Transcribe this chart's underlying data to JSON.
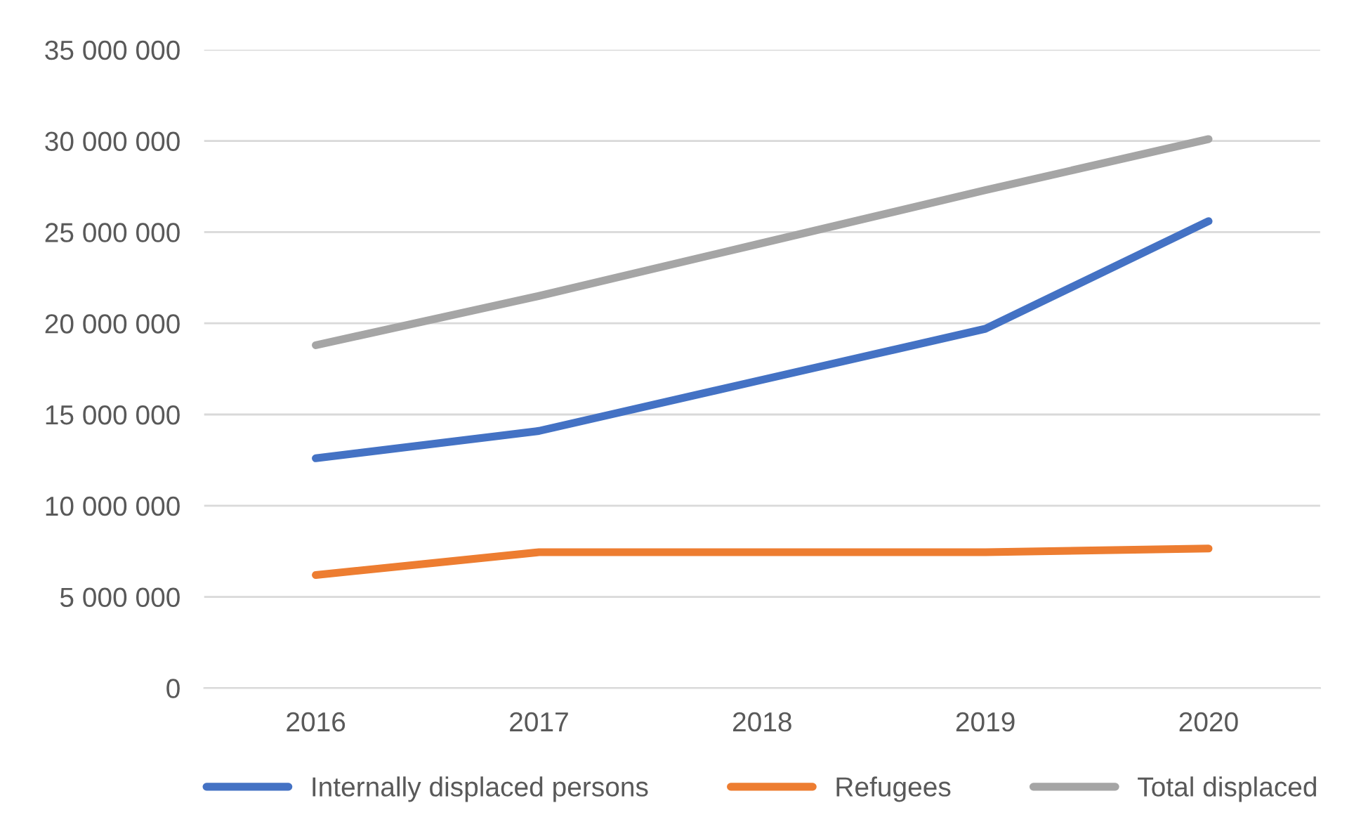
{
  "chart_data": {
    "type": "line",
    "categories": [
      "2016",
      "2017",
      "2018",
      "2019",
      "2020"
    ],
    "series": [
      {
        "name": "Internally displaced persons",
        "color": "#4472c4",
        "values": [
          12600000,
          14100000,
          16900000,
          19700000,
          25600000
        ]
      },
      {
        "name": "Refugees",
        "color": "#ed7d31",
        "values": [
          6200000,
          7450000,
          7450000,
          7450000,
          7650000
        ]
      },
      {
        "name": "Total displaced",
        "color": "#a5a5a5",
        "values": [
          18800000,
          21500000,
          24400000,
          27300000,
          30100000
        ]
      }
    ],
    "ylim": [
      0,
      35000000
    ],
    "yticks": [
      {
        "value": 0,
        "label": "0"
      },
      {
        "value": 5000000,
        "label": "5 000 000"
      },
      {
        "value": 10000000,
        "label": "10 000 000"
      },
      {
        "value": 15000000,
        "label": "15 000 000"
      },
      {
        "value": 20000000,
        "label": "20 000 000"
      },
      {
        "value": 25000000,
        "label": "25 000 000"
      },
      {
        "value": 30000000,
        "label": "30 000 000"
      },
      {
        "value": 35000000,
        "label": "35 000 000"
      }
    ],
    "grid": "y",
    "legend": "bottom",
    "marker": "none",
    "line_style": "solid"
  }
}
